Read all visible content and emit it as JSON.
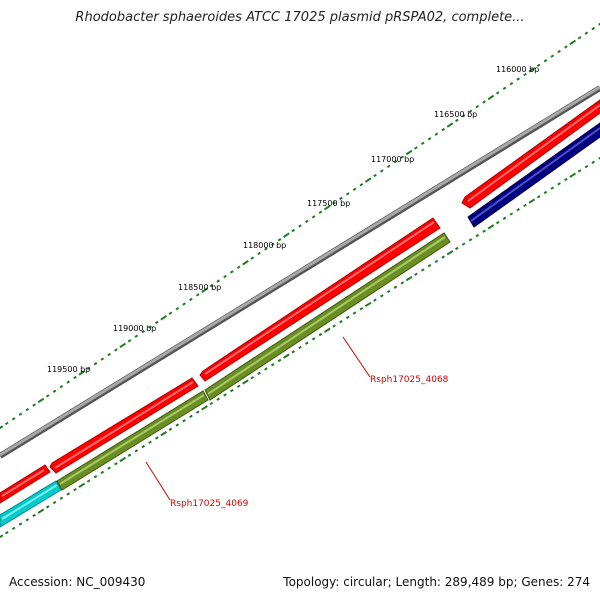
{
  "title": "Rhodobacter sphaeroides ATCC 17025 plasmid pRSPA02, complete...",
  "footer": {
    "accession": "Accession: NC_009430",
    "summary": "Topology: circular; Length: 289,489 bp; Genes: 274"
  },
  "ticks": [
    {
      "label": "116000 bp"
    },
    {
      "label": "116500 bp"
    },
    {
      "label": "117000 bp"
    },
    {
      "label": "117500 bp"
    },
    {
      "label": "118000 bp"
    },
    {
      "label": "118500 bp"
    },
    {
      "label": "119000 bp"
    },
    {
      "label": "119500 bp"
    }
  ],
  "gene_labels": [
    {
      "text": "Rsph17025_4068",
      "color": "#d40000"
    },
    {
      "text": "Rsph17025_4069",
      "color": "#d40000"
    }
  ],
  "colors": {
    "backbone": "#808080",
    "forward_cds": "#ff0000",
    "reverse_olive": "#6b8e23",
    "reverse_navy": "#000080",
    "reverse_cyan": "#00cccc",
    "tick": "#1f7a1f"
  }
}
